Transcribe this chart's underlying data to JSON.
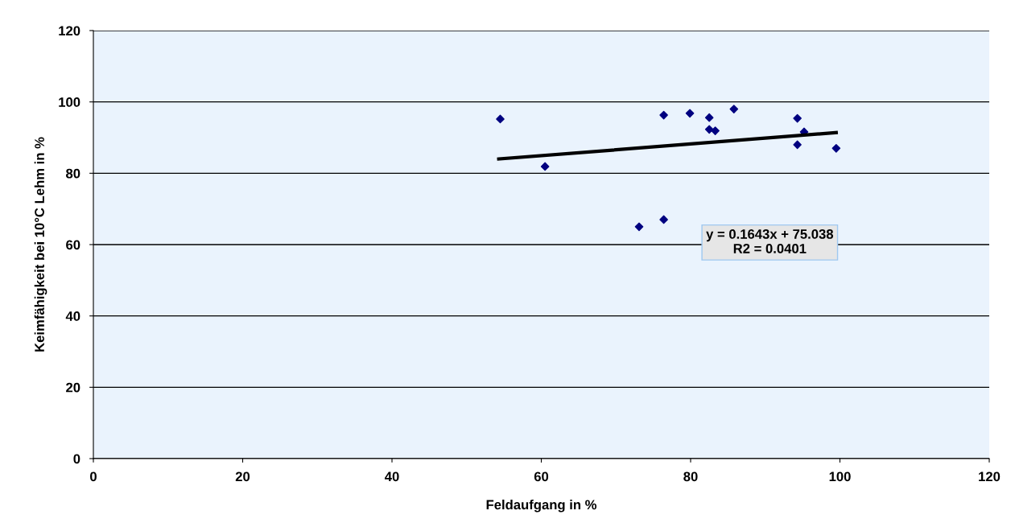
{
  "chart_data": {
    "type": "scatter",
    "xlabel": "Feldaufgang in %",
    "ylabel": "Keimfähigkeit bei 10°C Lehm in %",
    "series": [
      {
        "type": "scatter",
        "color": "#000080",
        "marker": "diamond",
        "x": [
          54.5,
          60.5,
          76.4,
          79.9,
          82.5,
          85.8,
          82.5,
          83.3,
          94.3,
          95.2,
          94.3,
          99.5,
          73.1,
          76.4
        ],
        "values": [
          95.2,
          81.9,
          96.3,
          96.8,
          95.6,
          98,
          92.3,
          91.9,
          95.4,
          91.6,
          88,
          87,
          65,
          67
        ]
      },
      {
        "type": "line",
        "color": "#000000",
        "marker": "none",
        "x": [
          54.3,
          99.5
        ],
        "values": [
          84,
          91.4
        ]
      }
    ],
    "annotations": [
      "y = 0.1643x + 75.038\nR2 = 0.0401"
    ],
    "xlim": [
      0,
      120
    ],
    "xticks": [
      0,
      20,
      40,
      60,
      80,
      100,
      120
    ],
    "ylim": [
      0,
      120
    ],
    "yticks": [
      0,
      20,
      40,
      60,
      80,
      100,
      120
    ],
    "grid": "y",
    "legend": false
  }
}
